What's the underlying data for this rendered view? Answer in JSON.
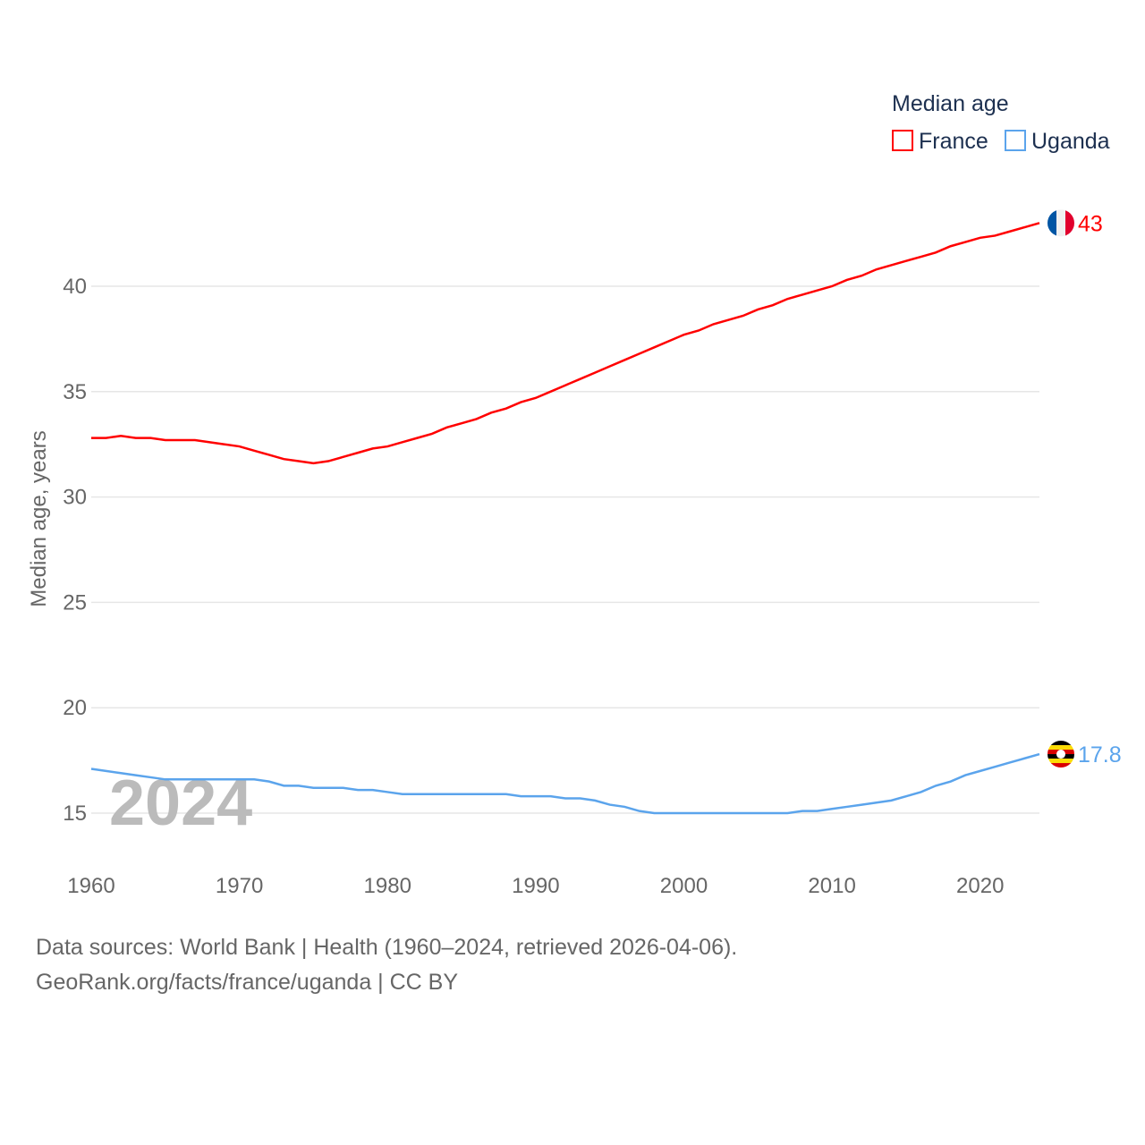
{
  "chart_data": {
    "type": "line",
    "title": "",
    "ylabel": "Median age, years",
    "xlabel": "",
    "legend_title": "Median age",
    "legend_position": "top-right",
    "xlim": [
      1960,
      2024
    ],
    "ylim": [
      13,
      45
    ],
    "xticks": [
      1960,
      1970,
      1980,
      1990,
      2000,
      2010,
      2020
    ],
    "yticks": [
      15,
      20,
      25,
      30,
      35,
      40
    ],
    "year_watermark": "2024",
    "x": [
      1960,
      1961,
      1962,
      1963,
      1964,
      1965,
      1966,
      1967,
      1968,
      1969,
      1970,
      1971,
      1972,
      1973,
      1974,
      1975,
      1976,
      1977,
      1978,
      1979,
      1980,
      1981,
      1982,
      1983,
      1984,
      1985,
      1986,
      1987,
      1988,
      1989,
      1990,
      1991,
      1992,
      1993,
      1994,
      1995,
      1996,
      1997,
      1998,
      1999,
      2000,
      2001,
      2002,
      2003,
      2004,
      2005,
      2006,
      2007,
      2008,
      2009,
      2010,
      2011,
      2012,
      2013,
      2014,
      2015,
      2016,
      2017,
      2018,
      2019,
      2020,
      2021,
      2022,
      2023,
      2024
    ],
    "series": [
      {
        "name": "France",
        "color": "#ff0000",
        "end_label": "43",
        "flag": "france-flag",
        "values": [
          32.8,
          32.8,
          32.9,
          32.8,
          32.8,
          32.7,
          32.7,
          32.7,
          32.6,
          32.5,
          32.4,
          32.2,
          32.0,
          31.8,
          31.7,
          31.6,
          31.7,
          31.9,
          32.1,
          32.3,
          32.4,
          32.6,
          32.8,
          33.0,
          33.3,
          33.5,
          33.7,
          34.0,
          34.2,
          34.5,
          34.7,
          35.0,
          35.3,
          35.6,
          35.9,
          36.2,
          36.5,
          36.8,
          37.1,
          37.4,
          37.7,
          37.9,
          38.2,
          38.4,
          38.6,
          38.9,
          39.1,
          39.4,
          39.6,
          39.8,
          40.0,
          40.3,
          40.5,
          40.8,
          41.0,
          41.2,
          41.4,
          41.6,
          41.9,
          42.1,
          42.3,
          42.4,
          42.6,
          42.8,
          43.0
        ]
      },
      {
        "name": "Uganda",
        "color": "#5ba4ec",
        "end_label": "17.8",
        "flag": "uganda-flag",
        "values": [
          17.1,
          17.0,
          16.9,
          16.8,
          16.7,
          16.6,
          16.6,
          16.6,
          16.6,
          16.6,
          16.6,
          16.6,
          16.5,
          16.3,
          16.3,
          16.2,
          16.2,
          16.2,
          16.1,
          16.1,
          16.0,
          15.9,
          15.9,
          15.9,
          15.9,
          15.9,
          15.9,
          15.9,
          15.9,
          15.8,
          15.8,
          15.8,
          15.7,
          15.7,
          15.6,
          15.4,
          15.3,
          15.1,
          15.0,
          15.0,
          15.0,
          15.0,
          15.0,
          15.0,
          15.0,
          15.0,
          15.0,
          15.0,
          15.1,
          15.1,
          15.2,
          15.3,
          15.4,
          15.5,
          15.6,
          15.8,
          16.0,
          16.3,
          16.5,
          16.8,
          17.0,
          17.2,
          17.4,
          17.6,
          17.8
        ]
      }
    ]
  },
  "footer": {
    "line1": "Data sources: World Bank | Health (1960–2024, retrieved 2026-04-06).",
    "line2": "GeoRank.org/facts/france/uganda | CC BY"
  }
}
